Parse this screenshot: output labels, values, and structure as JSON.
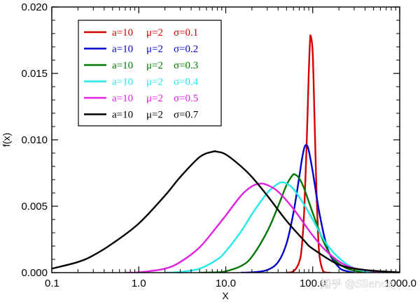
{
  "watermark": "知乎 @Silence",
  "chart_data": {
    "type": "line",
    "title": "",
    "xlabel": "X",
    "ylabel": "f(x)",
    "xscale": "log",
    "xlim": [
      0.1,
      1000
    ],
    "ylim": [
      0,
      0.02
    ],
    "xticks": [
      0.1,
      1,
      10,
      100,
      1000
    ],
    "xtick_labels": [
      "0.1",
      "1.0",
      "10.0",
      "100.0",
      "1000.0"
    ],
    "yticks": [
      0,
      0.005,
      0.01,
      0.015,
      0.02
    ],
    "ytick_labels": [
      "0.000",
      "0.005",
      "0.010",
      "0.015",
      "0.020"
    ],
    "grid": false,
    "legend_position": "top-left",
    "series": [
      {
        "name": "a=10  μ=2  σ=0.1",
        "a": "a=10",
        "mu": "μ=2",
        "sigma": "σ=0.1",
        "color": "#d40000",
        "x": [
          50,
          60,
          70,
          75,
          80,
          85,
          90,
          93,
          95,
          100,
          105,
          110,
          115,
          120,
          130,
          140,
          160
        ],
        "y": [
          0.0,
          0.0001,
          0.0008,
          0.002,
          0.0048,
          0.0095,
          0.015,
          0.0174,
          0.0178,
          0.0165,
          0.0115,
          0.0065,
          0.003,
          0.0012,
          0.0002,
          2e-05,
          0.0
        ]
      },
      {
        "name": "a=10  μ=2  σ=0.2",
        "a": "a=10",
        "mu": "μ=2",
        "sigma": "σ=0.2",
        "color": "#0000cc",
        "x": [
          15,
          20,
          30,
          40,
          50,
          60,
          70,
          75,
          80,
          85,
          90,
          100,
          120,
          150,
          200,
          250,
          300
        ],
        "y": [
          0.0,
          2e-05,
          0.0002,
          0.0008,
          0.0022,
          0.0045,
          0.0072,
          0.0085,
          0.0094,
          0.0096,
          0.0092,
          0.0076,
          0.0044,
          0.0017,
          0.0004,
          0.0001,
          0.0
        ]
      },
      {
        "name": "a=10  μ=2  σ=0.3",
        "a": "a=10",
        "mu": "μ=2",
        "sigma": "σ=0.3",
        "color": "#007700",
        "x": [
          5,
          8,
          10,
          15,
          20,
          30,
          40,
          50,
          58,
          62,
          70,
          80,
          100,
          130,
          170,
          250,
          400
        ],
        "y": [
          0.0,
          3e-05,
          0.0001,
          0.0005,
          0.0012,
          0.0031,
          0.005,
          0.0066,
          0.0073,
          0.0074,
          0.0071,
          0.0063,
          0.0045,
          0.0025,
          0.0011,
          0.0003,
          0.0
        ]
      },
      {
        "name": "a=10  μ=2  σ=0.4",
        "a": "a=10",
        "mu": "μ=2",
        "sigma": "σ=0.4",
        "color": "#22e8e8",
        "x": [
          2,
          3,
          5,
          8,
          10,
          15,
          20,
          30,
          40,
          45,
          50,
          60,
          80,
          100,
          150,
          250,
          400,
          600
        ],
        "y": [
          0.0,
          5e-05,
          0.0003,
          0.001,
          0.0016,
          0.0031,
          0.0044,
          0.006,
          0.0067,
          0.0068,
          0.0067,
          0.0063,
          0.0051,
          0.004,
          0.002,
          0.0006,
          0.0001,
          0.0
        ]
      },
      {
        "name": "a=10  μ=2  σ=0.5",
        "a": "a=10",
        "mu": "μ=2",
        "sigma": "σ=0.5",
        "color": "#e020e0",
        "x": [
          0.7,
          1,
          2,
          3,
          5,
          8,
          10,
          15,
          20,
          25,
          30,
          40,
          60,
          100,
          150,
          250,
          500,
          1000
        ],
        "y": [
          0.0,
          2e-05,
          0.0003,
          0.0008,
          0.0019,
          0.0035,
          0.0043,
          0.0058,
          0.0065,
          0.0067,
          0.0066,
          0.0061,
          0.0048,
          0.0028,
          0.0015,
          0.0005,
          0.0001,
          0.0
        ]
      },
      {
        "name": "a=10  μ=2  σ=0.7",
        "a": "a=10",
        "mu": "μ=2",
        "sigma": "σ=0.7",
        "color": "#000000",
        "x": [
          0.1,
          0.2,
          0.3,
          0.5,
          1,
          2,
          3,
          5,
          7,
          8,
          10,
          15,
          20,
          30,
          50,
          80,
          100,
          200,
          400,
          1000
        ],
        "y": [
          0.0003,
          0.0008,
          0.0013,
          0.0022,
          0.0037,
          0.0058,
          0.0072,
          0.0087,
          0.0091,
          0.0091,
          0.0089,
          0.008,
          0.0072,
          0.0058,
          0.0039,
          0.0024,
          0.0018,
          0.0006,
          0.0002,
          2e-05
        ]
      }
    ]
  }
}
